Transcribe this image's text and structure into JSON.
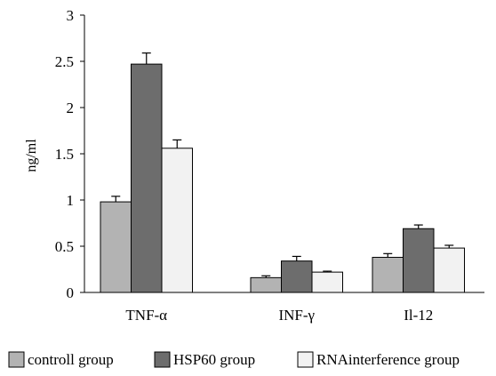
{
  "chart_data": {
    "type": "bar",
    "ylabel": "ng/ml",
    "xlabel": "",
    "ylim": [
      0,
      3
    ],
    "yticks": [
      "0",
      "0.5",
      "1",
      "1.5",
      "2",
      "2.5",
      "3"
    ],
    "categories": [
      "TNF-α",
      "INF-γ",
      "Il-12"
    ],
    "series": [
      {
        "name": "controll group",
        "values": [
          0.98,
          0.16,
          0.38
        ],
        "errors": [
          0.06,
          0.02,
          0.04
        ],
        "color": "#b3b3b3"
      },
      {
        "name": "HSP60 group",
        "values": [
          2.47,
          0.34,
          0.69
        ],
        "errors": [
          0.12,
          0.05,
          0.04
        ],
        "color": "#6d6d6d"
      },
      {
        "name": "RNAinterference group",
        "values": [
          1.56,
          0.22,
          0.48
        ],
        "errors": [
          0.09,
          0.01,
          0.03
        ],
        "color": "#f2f2f2"
      }
    ],
    "legend_position": "bottom"
  }
}
